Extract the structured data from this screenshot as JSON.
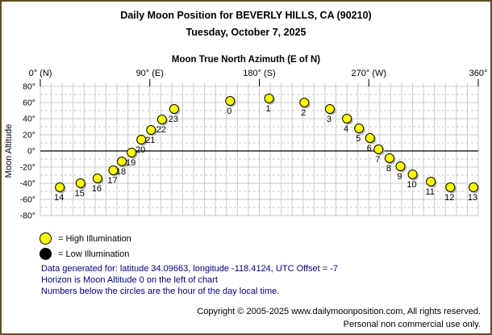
{
  "window": {
    "title": "Daily Moon Position for BEVERLY HILLS, CA (90210)",
    "date": "Tuesday, October 7, 2025"
  },
  "chart_data": {
    "type": "scatter",
    "title": "Moon True North Azimuth (E of N)",
    "xlabel": "Moon True North Azimuth (E of N)",
    "ylabel": "Moon Altitude",
    "xlim": [
      0,
      360
    ],
    "ylim": [
      -80,
      80
    ],
    "x_grid_step": 9,
    "y_grid_step": 10,
    "grid": true,
    "horizon_altitude": 0,
    "x_ticks": [
      {
        "value": 0,
        "label": "0° (N)"
      },
      {
        "value": 90,
        "label": "90° (E)"
      },
      {
        "value": 180,
        "label": "180° (S)"
      },
      {
        "value": 270,
        "label": "270° (W)"
      },
      {
        "value": 360,
        "label": "360°"
      }
    ],
    "y_ticks": [
      {
        "value": 80,
        "label": "80°"
      },
      {
        "value": 60,
        "label": "60°"
      },
      {
        "value": 40,
        "label": "40°"
      },
      {
        "value": 20,
        "label": "20°"
      },
      {
        "value": 0,
        "label": "0°"
      },
      {
        "value": -20,
        "label": "-20°"
      },
      {
        "value": -40,
        "label": "-40°"
      },
      {
        "value": -60,
        "label": "-60°"
      },
      {
        "value": -80,
        "label": "-80°"
      }
    ],
    "point_color": "#ffff00",
    "point_outline": "#000000",
    "grid_color": "#c9c9c9",
    "points": [
      {
        "hour": "0",
        "azimuth": 156,
        "altitude": 62,
        "illumination": "high"
      },
      {
        "hour": "1",
        "azimuth": 188,
        "altitude": 65,
        "illumination": "high"
      },
      {
        "hour": "2",
        "azimuth": 217,
        "altitude": 60,
        "illumination": "high"
      },
      {
        "hour": "3",
        "azimuth": 238,
        "altitude": 52,
        "illumination": "high"
      },
      {
        "hour": "4",
        "azimuth": 252,
        "altitude": 40,
        "illumination": "high"
      },
      {
        "hour": "5",
        "azimuth": 262,
        "altitude": 28,
        "illumination": "high"
      },
      {
        "hour": "6",
        "azimuth": 271,
        "altitude": 16,
        "illumination": "high"
      },
      {
        "hour": "7",
        "azimuth": 278,
        "altitude": 2,
        "illumination": "high"
      },
      {
        "hour": "8",
        "azimuth": 287,
        "altitude": -9,
        "illumination": "high"
      },
      {
        "hour": "9",
        "azimuth": 296,
        "altitude": -19,
        "illumination": "high"
      },
      {
        "hour": "10",
        "azimuth": 306,
        "altitude": -29,
        "illumination": "high"
      },
      {
        "hour": "11",
        "azimuth": 321,
        "altitude": -38,
        "illumination": "high"
      },
      {
        "hour": "12",
        "azimuth": 337,
        "altitude": -45,
        "illumination": "high"
      },
      {
        "hour": "13",
        "azimuth": 356,
        "altitude": -45,
        "illumination": "high"
      },
      {
        "hour": "14",
        "azimuth": 16,
        "altitude": -45,
        "illumination": "high"
      },
      {
        "hour": "15",
        "azimuth": 33,
        "altitude": -40,
        "illumination": "high"
      },
      {
        "hour": "16",
        "azimuth": 47,
        "altitude": -34,
        "illumination": "high"
      },
      {
        "hour": "17",
        "azimuth": 60,
        "altitude": -24,
        "illumination": "high"
      },
      {
        "hour": "18",
        "azimuth": 67,
        "altitude": -13,
        "illumination": "high"
      },
      {
        "hour": "19",
        "azimuth": 75,
        "altitude": -2,
        "illumination": "high"
      },
      {
        "hour": "20",
        "azimuth": 83,
        "altitude": 14,
        "illumination": "high"
      },
      {
        "hour": "21",
        "azimuth": 91,
        "altitude": 26,
        "illumination": "high"
      },
      {
        "hour": "22",
        "azimuth": 100,
        "altitude": 39,
        "illumination": "high"
      },
      {
        "hour": "23",
        "azimuth": 110,
        "altitude": 52,
        "illumination": "high"
      }
    ]
  },
  "legend": {
    "items": [
      {
        "label": "= High Illumination",
        "color": "#ffff00"
      },
      {
        "label": "= Low Illumination",
        "color": "#000000"
      }
    ]
  },
  "notes": [
    "Data generated for: latitude 34.09663, longitude -118.4124, UTC Offset = -7",
    "Horizon is Moon Altitude 0 on the left of chart",
    "Numbers below the circles are the hour of the day local time."
  ],
  "footer": {
    "line1": "Copyright © 2005-2025 www.dailymoonposition.com, All rights reserved.",
    "line2": "Personal non commercial use only."
  }
}
